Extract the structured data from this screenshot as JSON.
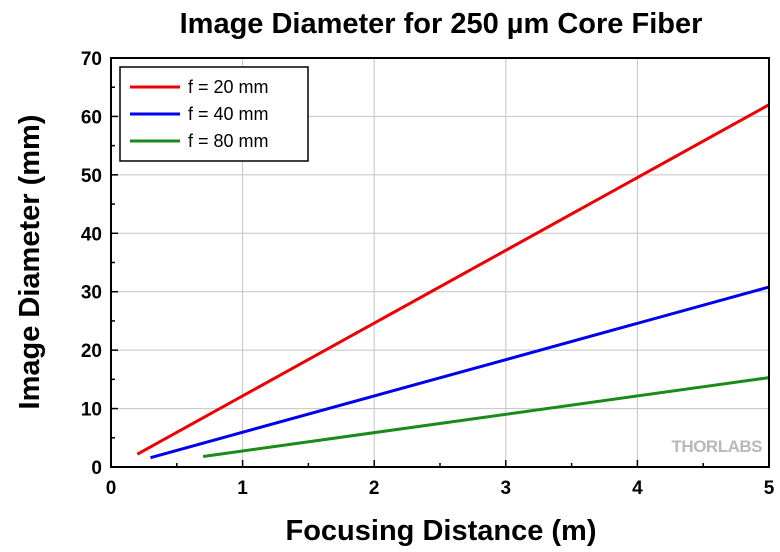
{
  "chart_data": {
    "type": "line",
    "title": "Image Diameter for 250 µm Core Fiber",
    "xlabel": "Focusing Distance (m)",
    "ylabel": "Image Diameter (mm)",
    "xlim": [
      0,
      5
    ],
    "ylim": [
      0,
      70
    ],
    "x_ticks": [
      "0",
      "1",
      "2",
      "3",
      "4",
      "5"
    ],
    "y_ticks": [
      "0",
      "10",
      "20",
      "30",
      "40",
      "50",
      "60",
      "70"
    ],
    "grid": true,
    "legend_position": "top-left",
    "series": [
      {
        "name": "f = 20 mm",
        "color": "#ee0000",
        "points": [
          [
            0.2,
            2.2
          ],
          [
            5,
            62
          ]
        ]
      },
      {
        "name": "f = 40 mm",
        "color": "#0000ee",
        "points": [
          [
            0.3,
            1.6
          ],
          [
            5,
            30.8
          ]
        ]
      },
      {
        "name": "f = 80 mm",
        "color": "#1a8a1a",
        "points": [
          [
            0.7,
            1.8
          ],
          [
            5,
            15.3
          ]
        ]
      }
    ],
    "watermark": "THORLABS"
  }
}
